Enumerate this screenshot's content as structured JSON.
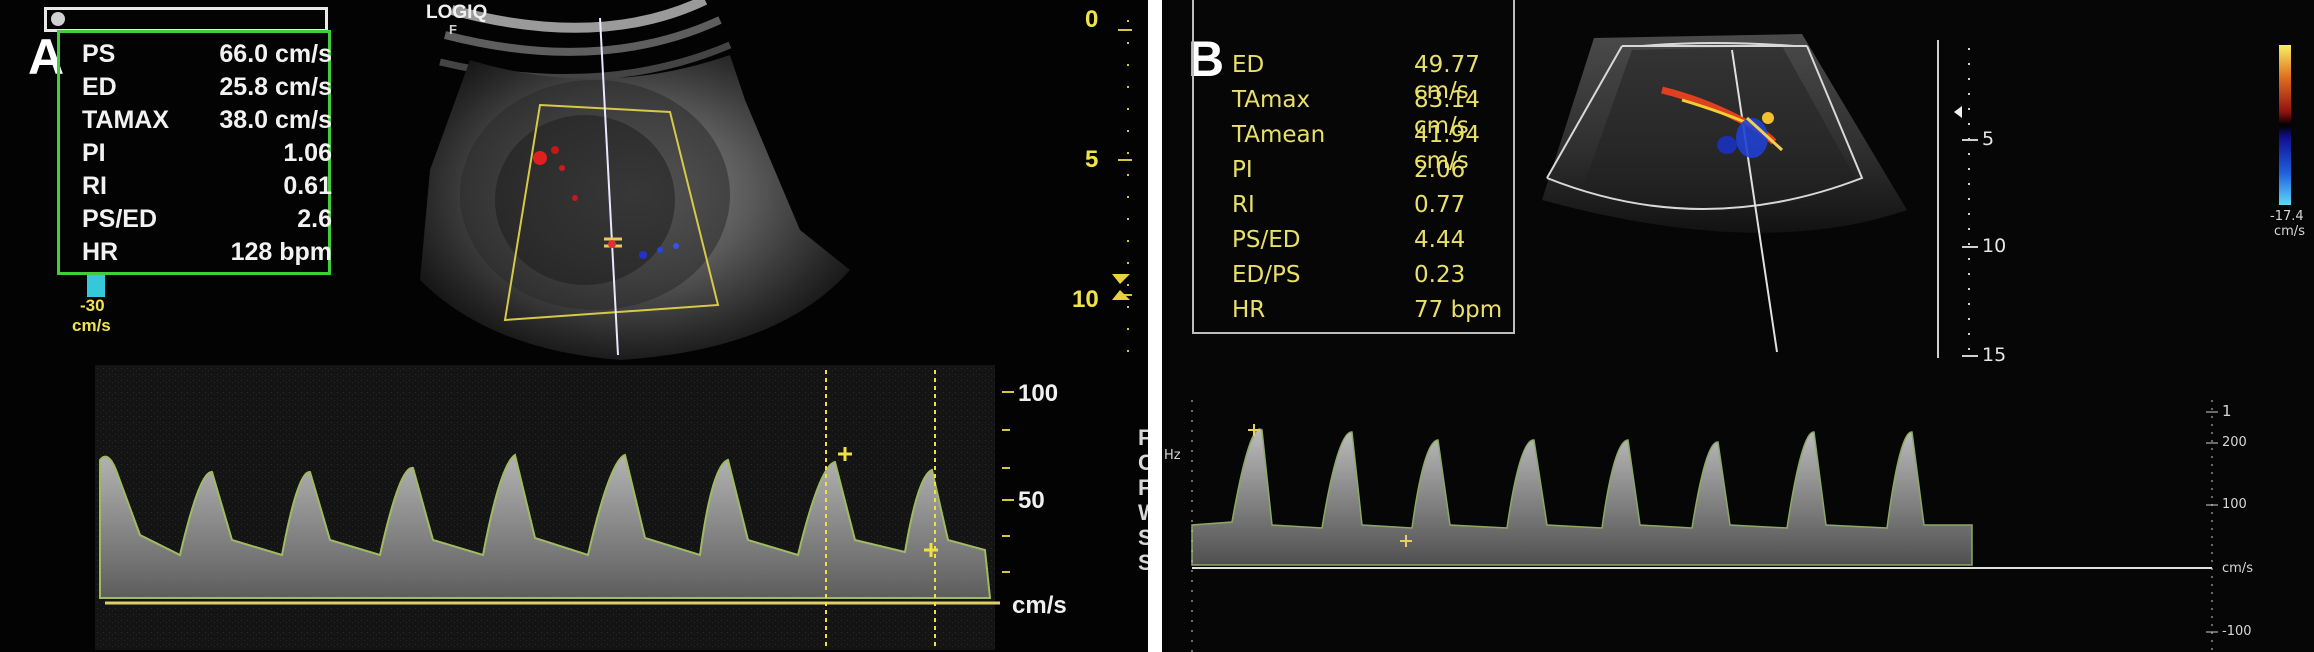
{
  "panel_a": {
    "letter": "A",
    "brand": "LOGIQ",
    "brand_sub": "F",
    "measurements": [
      {
        "label": "PS",
        "value": "66.0 cm/s"
      },
      {
        "label": "ED",
        "value": "25.8 cm/s"
      },
      {
        "label": "TAMAX",
        "value": "38.0 cm/s"
      },
      {
        "label": "PI",
        "value": "1.06"
      },
      {
        "label": "RI",
        "value": "0.61"
      },
      {
        "label": "PS/ED",
        "value": "2.6"
      },
      {
        "label": "HR",
        "value": "128 bpm"
      }
    ],
    "color_scale_min": "-30",
    "color_scale_unit": "cm/s",
    "depth_labels": [
      "0",
      "5",
      "10"
    ],
    "doppler_labels": [
      "100",
      "50",
      "cm/s"
    ],
    "side_chars": [
      "F",
      "C",
      "F",
      "W",
      "S",
      "S"
    ]
  },
  "panel_b": {
    "letter": "B",
    "measurements": [
      {
        "label": "ED",
        "value": "49.77 cm/s"
      },
      {
        "label": "TAmax",
        "value": "83.14 cm/s"
      },
      {
        "label": "TAmean",
        "value": "41.94 cm/s"
      },
      {
        "label": "PI",
        "value": "2.06"
      },
      {
        "label": "RI",
        "value": "0.77"
      },
      {
        "label": "PS/ED",
        "value": "4.44"
      },
      {
        "label": "ED/PS",
        "value": "0.23"
      },
      {
        "label": "HR",
        "value": "77 bpm"
      }
    ],
    "depth_labels": [
      "5",
      "10",
      "15"
    ],
    "color_scale_value": "-17.4",
    "color_scale_unit": "cm/s",
    "doppler_labels": [
      "1",
      "200",
      "100",
      "cm/s",
      "-100"
    ],
    "hz_label": "Hz"
  },
  "colors": {
    "green_box": "#3fcf3a",
    "yellow": "#f0e24a",
    "b_text": "#e9e06a",
    "waveform_outline": "#b8d870"
  }
}
